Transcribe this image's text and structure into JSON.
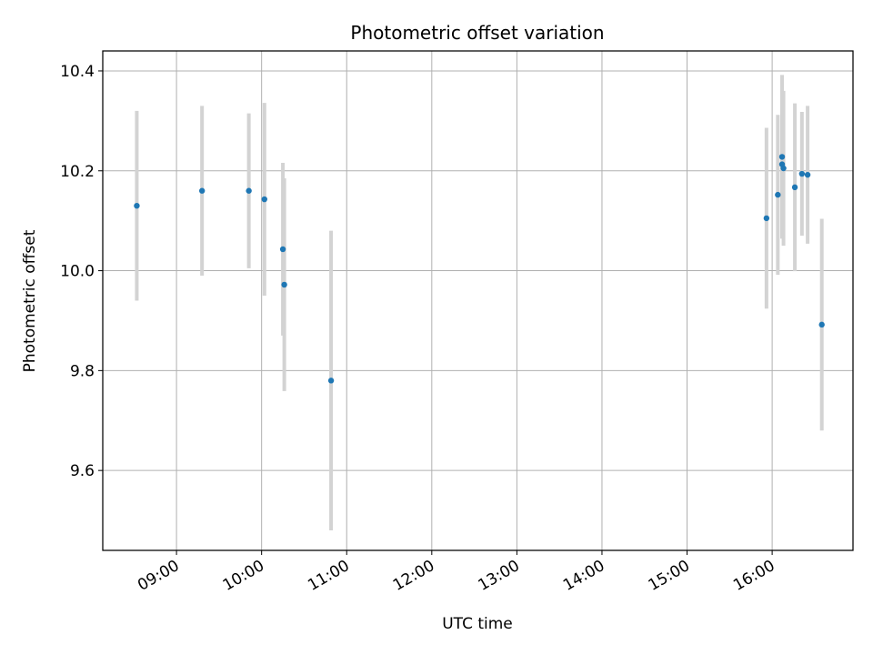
{
  "chart_data": {
    "type": "scatter",
    "title": "Photometric offset variation",
    "xlabel": "UTC time",
    "ylabel": "Photometric offset",
    "x_axis_kind": "time",
    "xlim": [
      "08:08",
      "16:57"
    ],
    "ylim": [
      9.44,
      10.44
    ],
    "x_ticks": [
      "09:00",
      "10:00",
      "11:00",
      "12:00",
      "13:00",
      "14:00",
      "15:00",
      "16:00"
    ],
    "y_ticks": [
      9.6,
      9.8,
      10.0,
      10.2,
      10.4
    ],
    "y_tick_labels": [
      "9.6",
      "9.8",
      "10.0",
      "10.2",
      "10.4"
    ],
    "grid": true,
    "colors": {
      "point": "#1f77b4",
      "error_bar": "#d3d3d3"
    },
    "series": [
      {
        "points": [
          {
            "x": "08:32",
            "y": 10.13,
            "yerr_low": 0.19,
            "yerr_high": 0.19
          },
          {
            "x": "09:18",
            "y": 10.16,
            "yerr_low": 0.17,
            "yerr_high": 0.17
          },
          {
            "x": "09:51",
            "y": 10.16,
            "yerr_low": 0.155,
            "yerr_high": 0.155
          },
          {
            "x": "10:02",
            "y": 10.143,
            "yerr_low": 0.193,
            "yerr_high": 0.193
          },
          {
            "x": "10:15",
            "y": 10.043,
            "yerr_low": 0.173,
            "yerr_high": 0.173
          },
          {
            "x": "10:16",
            "y": 9.972,
            "yerr_low": 0.213,
            "yerr_high": 0.213
          },
          {
            "x": "10:49",
            "y": 9.78,
            "yerr_low": 0.3,
            "yerr_high": 0.3
          },
          {
            "x": "15:56",
            "y": 10.105,
            "yerr_low": 0.181,
            "yerr_high": 0.181
          },
          {
            "x": "16:04",
            "y": 10.152,
            "yerr_low": 0.16,
            "yerr_high": 0.16
          },
          {
            "x": "16:07",
            "y": 10.228,
            "yerr_low": 0.164,
            "yerr_high": 0.164
          },
          {
            "x": "16:07",
            "y": 10.213,
            "yerr_low": 0.148,
            "yerr_high": 0.148
          },
          {
            "x": "16:08",
            "y": 10.205,
            "yerr_low": 0.155,
            "yerr_high": 0.155
          },
          {
            "x": "16:16",
            "y": 10.167,
            "yerr_low": 0.168,
            "yerr_high": 0.168
          },
          {
            "x": "16:21",
            "y": 10.194,
            "yerr_low": 0.124,
            "yerr_high": 0.124
          },
          {
            "x": "16:25",
            "y": 10.192,
            "yerr_low": 0.138,
            "yerr_high": 0.138
          },
          {
            "x": "16:35",
            "y": 9.892,
            "yerr_low": 0.212,
            "yerr_high": 0.212
          }
        ]
      }
    ]
  }
}
